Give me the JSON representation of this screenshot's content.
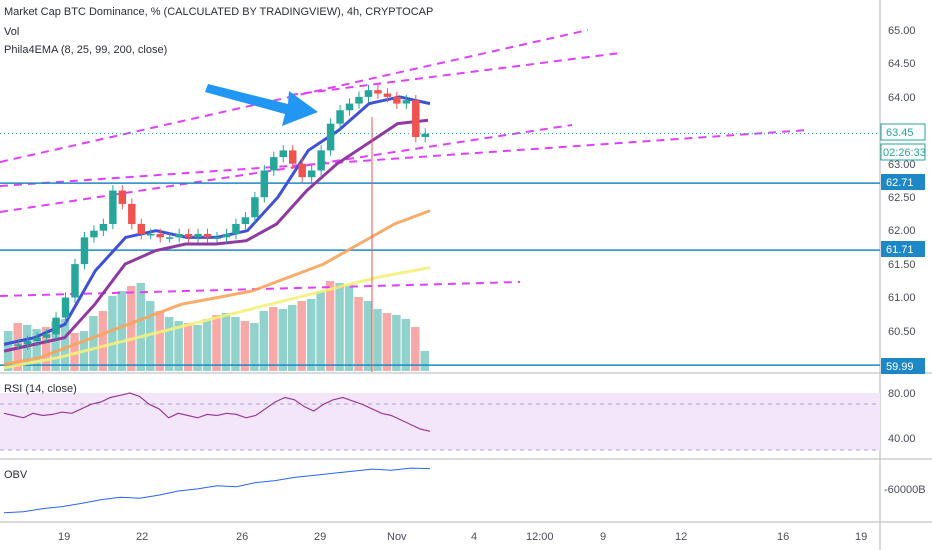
{
  "header": {
    "title": "Market Cap BTC Dominance, % (CALCULATED BY TRADINGVIEW), 4h, CRYPTOCAP",
    "vol_label": "Vol",
    "ema_label": "Phila4EMA (8, 25, 99, 200, close)"
  },
  "rsi_panel": {
    "label": "RSI (14, close)",
    "ticks": [
      "80.00",
      "40.00"
    ]
  },
  "obv_panel": {
    "label": "OBV",
    "tick": "-60000B"
  },
  "price_axis": {
    "ticks": [
      "65.00",
      "64.50",
      "64.00",
      "63.00",
      "62.50",
      "62.00",
      "61.50",
      "61.00",
      "60.50"
    ],
    "current_price": "63.45",
    "countdown": "02:26:33",
    "level_badges": [
      "62.71",
      "61.71",
      "59.99"
    ]
  },
  "time_axis": {
    "labels": [
      "19",
      "22",
      "26",
      "29",
      "Nov",
      "4",
      "12:00",
      "9",
      "12",
      "16",
      "19"
    ]
  },
  "colors": {
    "accent_blue": "#2196f3",
    "level_line": "#1e88c6",
    "channel": "#e040fb",
    "ema8": "#3f51d5",
    "ema25": "#8e3aa0",
    "ema99": "#f7a35c",
    "ema200": "#f5f07a",
    "up": "#26a69a",
    "down": "#ef5350",
    "rsi": "#9c3c93"
  },
  "chart_data": {
    "type": "candlestick",
    "title": "Market Cap BTC Dominance, % (CALCULATED BY TRADINGVIEW), 4h, CRYPTOCAP",
    "timeframe": "4h",
    "x_labels": [
      "19",
      "22",
      "26",
      "29",
      "Nov",
      "4",
      "12:00",
      "9",
      "12",
      "16",
      "19"
    ],
    "ylim": [
      59.9,
      65.3
    ],
    "price_path": [
      60.3,
      60.3,
      60.35,
      60.4,
      60.45,
      60.7,
      61.0,
      61.5,
      61.9,
      62.0,
      62.1,
      62.6,
      62.4,
      62.1,
      61.95,
      61.95,
      61.9,
      61.9,
      61.95,
      61.9,
      61.95,
      61.9,
      61.9,
      61.95,
      62.1,
      62.2,
      62.5,
      62.9,
      63.1,
      63.2,
      63.0,
      62.8,
      62.9,
      63.2,
      63.6,
      63.8,
      63.9,
      64.0,
      64.1,
      64.05,
      64.0,
      63.9,
      63.95,
      63.4,
      63.45
    ],
    "ema_series": [
      {
        "name": "EMA 8",
        "values": [
          60.3,
          60.4,
          60.6,
          61.4,
          61.9,
          62.0,
          61.9,
          61.9,
          62.0,
          62.5,
          63.2,
          63.5,
          63.9,
          64.0,
          63.9
        ]
      },
      {
        "name": "EMA 25",
        "values": [
          60.2,
          60.3,
          60.4,
          60.9,
          61.5,
          61.7,
          61.8,
          61.8,
          61.85,
          62.1,
          62.6,
          63.0,
          63.3,
          63.6,
          63.65
        ]
      },
      {
        "name": "EMA 99",
        "values": [
          60.0,
          60.1,
          60.3,
          60.5,
          60.7,
          60.9,
          61.0,
          61.1,
          61.3,
          61.5,
          61.8,
          62.1,
          62.3
        ]
      },
      {
        "name": "EMA 200",
        "values": [
          59.95,
          60.1,
          60.3,
          60.5,
          60.7,
          60.9,
          61.1,
          61.3,
          61.45
        ]
      }
    ],
    "horizontal_levels": [
      62.71,
      61.71,
      59.99
    ],
    "current_price": 63.45,
    "rsi": {
      "range": [
        40,
        80
      ],
      "values": [
        62,
        60,
        58,
        62,
        60,
        61,
        63,
        62,
        66,
        70,
        72,
        76,
        78,
        80,
        77,
        70,
        66,
        58,
        62,
        60,
        58,
        61,
        60,
        62,
        61,
        58,
        60,
        66,
        72,
        76,
        74,
        68,
        64,
        70,
        74,
        76,
        73,
        70,
        66,
        62,
        60,
        56,
        52,
        48,
        46
      ]
    },
    "obv": {
      "values": [
        0.1,
        0.12,
        0.18,
        0.22,
        0.28,
        0.35,
        0.4,
        0.38,
        0.44,
        0.52,
        0.56,
        0.62,
        0.6,
        0.68,
        0.72,
        0.78,
        0.82,
        0.86,
        0.9,
        0.94,
        0.92,
        0.96,
        0.95
      ]
    },
    "annotation": "blue arrow pointing to channel breakout"
  }
}
